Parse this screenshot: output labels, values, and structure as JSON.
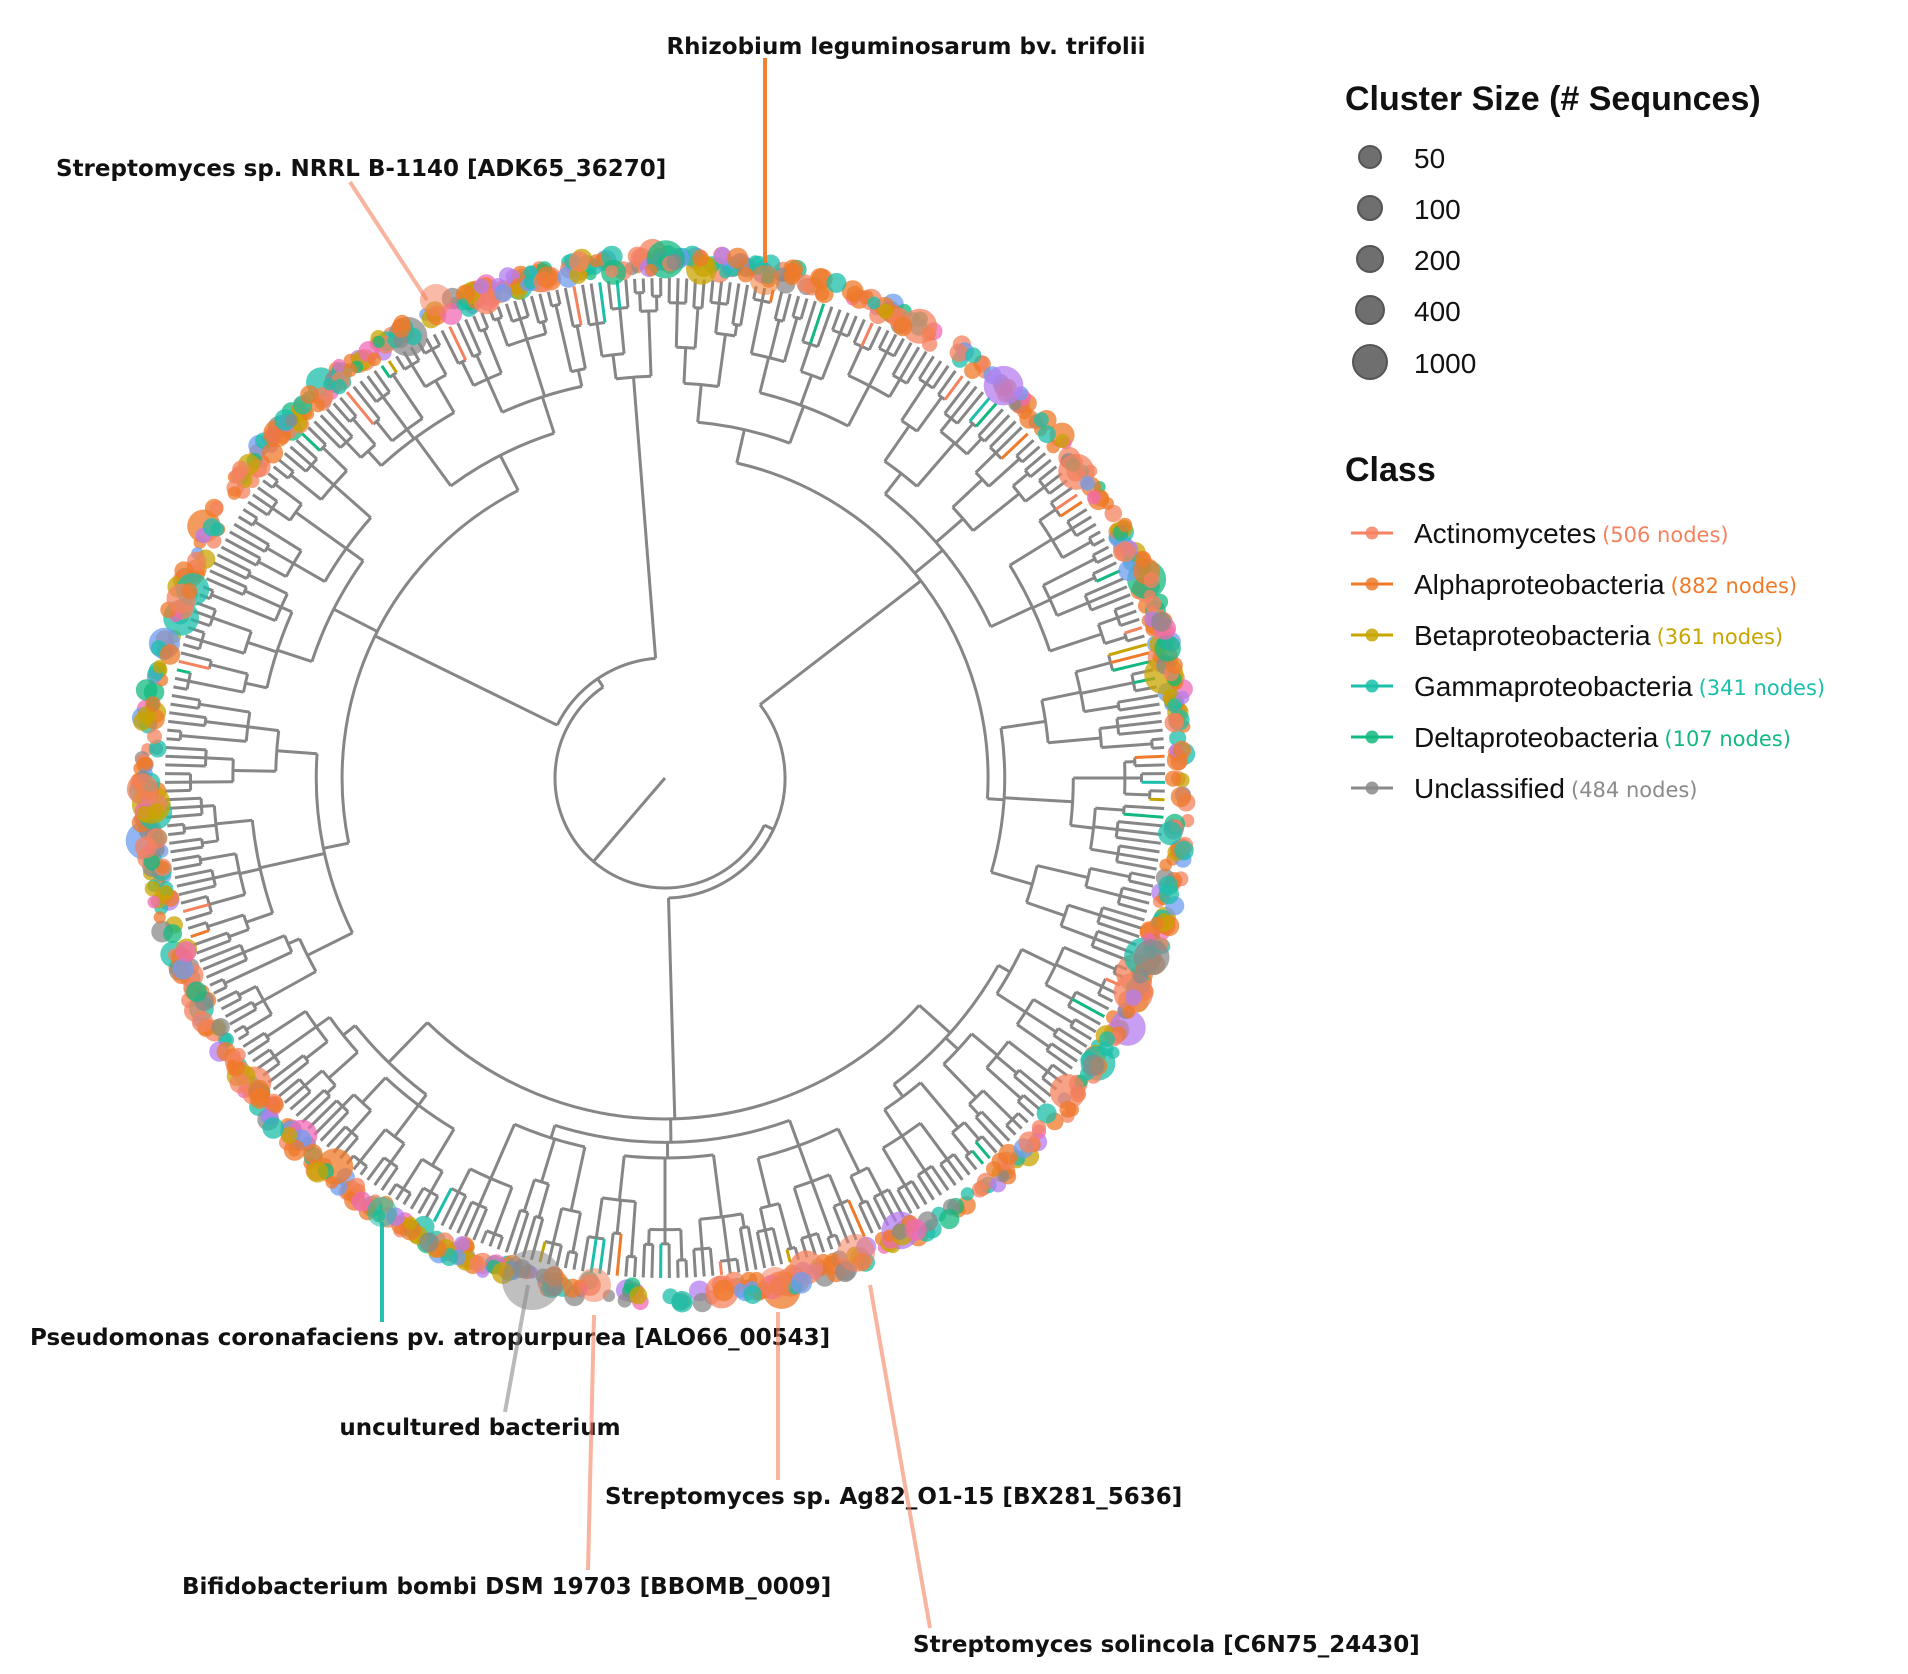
{
  "figure": {
    "callouts": [
      {
        "id": "rhizobium",
        "label": "Rhizobium leguminosarum bv. trifolii",
        "class": "Alphaproteobacteria"
      },
      {
        "id": "streptomyces-nrrl",
        "label": "Streptomyces sp. NRRL B-1140 [ADK65_36270]",
        "class": "Actinomycetes"
      },
      {
        "id": "pseudomonas",
        "label": "Pseudomonas coronafaciens pv. atropurpurea [ALO66_00543]",
        "class": "Gammaproteobacteria"
      },
      {
        "id": "uncultured",
        "label": "uncultured bacterium",
        "class": "Unclassified"
      },
      {
        "id": "streptomyces-ag82",
        "label": "Streptomyces sp. Ag82_O1-15 [BX281_5636]",
        "class": "Actinomycetes"
      },
      {
        "id": "bifidobacterium",
        "label": "Bifidobacterium bombi DSM 19703 [BBOMB_0009]",
        "class": "Actinomycetes"
      },
      {
        "id": "streptomyces-solincola",
        "label": "Streptomyces solincola [C6N75_24430]",
        "class": "Actinomycetes"
      }
    ]
  },
  "legend": {
    "size_title": "Cluster Size (# Sequnces)",
    "sizes": [
      {
        "label": "50",
        "value": 50
      },
      {
        "label": "100",
        "value": 100
      },
      {
        "label": "200",
        "value": 200
      },
      {
        "label": "400",
        "value": 400
      },
      {
        "label": "1000",
        "value": 1000
      }
    ],
    "class_title": "Class",
    "classes": [
      {
        "name": "Actinomycetes",
        "count": "(506 nodes)",
        "color": "#f4825f"
      },
      {
        "name": "Alphaproteobacteria",
        "count": "(882 nodes)",
        "color": "#ef7a2a"
      },
      {
        "name": "Betaproteobacteria",
        "count": "(361 nodes)",
        "color": "#c8a400"
      },
      {
        "name": "Gammaproteobacteria",
        "count": "(341 nodes)",
        "color": "#1bbfaa"
      },
      {
        "name": "Deltaproteobacteria",
        "count": "(107 nodes)",
        "color": "#13b97f"
      },
      {
        "name": "Unclassified",
        "count": "(484 nodes)",
        "color": "#8a8a8a"
      }
    ]
  },
  "palette": {
    "branch": "#868686",
    "extra_tip_colors": [
      "#6e9cf0",
      "#b57cf0",
      "#f06ab4",
      "#9a9a9a"
    ]
  }
}
